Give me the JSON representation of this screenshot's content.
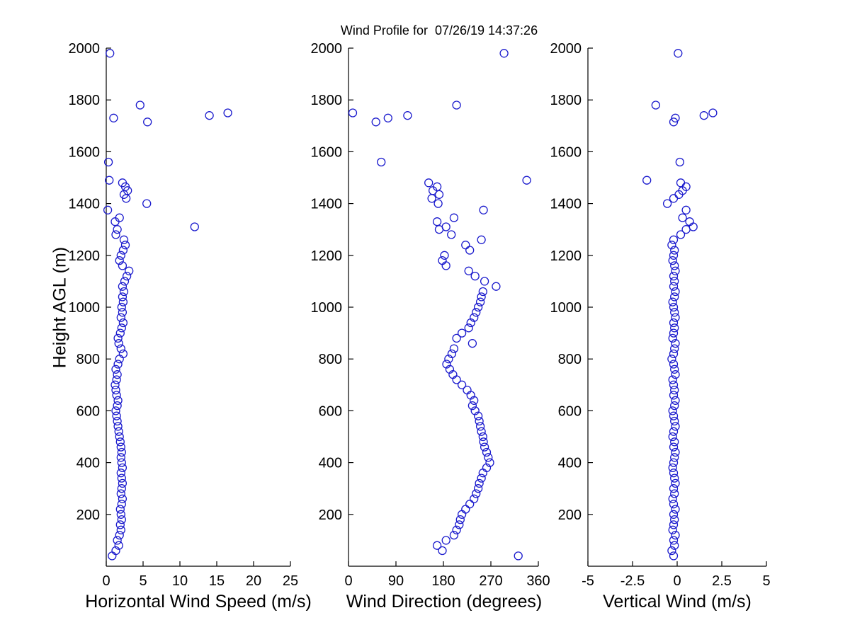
{
  "figure": {
    "title": "Wind Profile for  07/26/19 14:37:26",
    "marker_color": "#1a1acd",
    "axis_color": "#000000"
  },
  "chart_data": {
    "type": "scatter",
    "title": "Wind Profile for  07/26/19 14:37:26",
    "ylabel": "Height AGL (m)",
    "ylim": [
      0,
      2000
    ],
    "yticks": [
      200,
      400,
      600,
      800,
      1000,
      1200,
      1400,
      1600,
      1800,
      2000
    ],
    "grid": false,
    "legend": "none",
    "marker": "open-circle",
    "heights": [
      40,
      60,
      80,
      100,
      120,
      140,
      160,
      180,
      200,
      220,
      240,
      260,
      280,
      300,
      320,
      340,
      360,
      380,
      400,
      420,
      440,
      460,
      480,
      500,
      520,
      540,
      560,
      580,
      600,
      620,
      640,
      660,
      680,
      700,
      720,
      740,
      760,
      780,
      800,
      820,
      840,
      860,
      880,
      900,
      920,
      940,
      960,
      980,
      1000,
      1020,
      1040,
      1060,
      1080,
      1100,
      1120,
      1140,
      1160,
      1180,
      1200,
      1220,
      1240,
      1260,
      1280,
      1300,
      1310,
      1330,
      1345,
      1375,
      1400,
      1420,
      1435,
      1450,
      1465,
      1480,
      1490,
      1560,
      1715,
      1730,
      1740,
      1750,
      1780,
      1980
    ],
    "panels": [
      {
        "xlabel": "Horizontal Wind Speed (m/s)",
        "xlim": [
          0,
          25
        ],
        "xticks": [
          0,
          5,
          10,
          15,
          20,
          25
        ],
        "values": [
          0.8,
          1.3,
          1.7,
          1.5,
          1.8,
          2.0,
          1.9,
          2.1,
          2.0,
          1.9,
          2.1,
          2.2,
          2.0,
          2.1,
          2.2,
          2.1,
          2.0,
          2.2,
          2.1,
          2.0,
          2.1,
          2.0,
          1.9,
          1.8,
          1.7,
          1.6,
          1.5,
          1.4,
          1.3,
          1.5,
          1.6,
          1.4,
          1.3,
          1.2,
          1.4,
          1.5,
          1.3,
          1.6,
          1.8,
          2.3,
          2.0,
          1.7,
          1.6,
          1.9,
          2.1,
          2.3,
          2.0,
          2.2,
          2.1,
          2.3,
          2.2,
          2.4,
          2.2,
          2.5,
          2.8,
          3.1,
          2.2,
          1.8,
          2.0,
          2.3,
          2.6,
          2.4,
          1.3,
          1.5,
          12.0,
          1.2,
          1.8,
          0.2,
          5.5,
          2.7,
          2.4,
          2.9,
          2.6,
          2.2,
          0.4,
          0.3,
          5.6,
          1.0,
          14.0,
          16.5,
          4.6,
          0.5
        ]
      },
      {
        "xlabel": "Wind Direction (degrees)",
        "xlim": [
          0,
          360
        ],
        "xticks": [
          0,
          90,
          180,
          270,
          360
        ],
        "values": [
          322,
          178,
          168,
          185,
          200,
          205,
          210,
          212,
          215,
          222,
          230,
          238,
          242,
          246,
          248,
          252,
          255,
          262,
          268,
          265,
          262,
          258,
          256,
          255,
          252,
          250,
          248,
          246,
          240,
          235,
          238,
          232,
          225,
          215,
          205,
          198,
          192,
          186,
          190,
          196,
          200,
          235,
          205,
          215,
          228,
          232,
          238,
          242,
          246,
          250,
          252,
          255,
          280,
          258,
          240,
          228,
          185,
          178,
          182,
          230,
          222,
          252,
          195,
          172,
          185,
          168,
          200,
          256,
          170,
          158,
          172,
          160,
          168,
          152,
          338,
          62,
          52,
          75,
          112,
          8,
          205,
          295
        ]
      },
      {
        "xlabel": "Vertical Wind (m/s)",
        "xlim": [
          -5,
          5
        ],
        "xticks": [
          -5,
          -2.5,
          0,
          2.5,
          5
        ],
        "values": [
          -0.2,
          -0.3,
          -0.15,
          -0.2,
          -0.1,
          -0.25,
          -0.2,
          -0.15,
          -0.2,
          -0.1,
          -0.2,
          -0.25,
          -0.15,
          -0.2,
          -0.1,
          -0.15,
          -0.2,
          -0.25,
          -0.2,
          -0.15,
          -0.1,
          -0.2,
          -0.15,
          -0.25,
          -0.2,
          -0.1,
          -0.15,
          -0.2,
          -0.25,
          -0.15,
          -0.1,
          -0.2,
          -0.15,
          -0.2,
          -0.25,
          -0.1,
          -0.15,
          -0.2,
          -0.3,
          -0.2,
          -0.15,
          -0.1,
          -0.25,
          -0.2,
          -0.15,
          -0.2,
          -0.1,
          -0.15,
          -0.2,
          -0.25,
          -0.15,
          -0.1,
          -0.2,
          -0.15,
          -0.2,
          -0.1,
          -0.15,
          -0.25,
          -0.2,
          -0.15,
          -0.3,
          -0.2,
          0.2,
          0.5,
          0.9,
          0.7,
          0.3,
          0.5,
          -0.55,
          -0.2,
          0.1,
          0.3,
          0.5,
          0.2,
          -1.7,
          0.15,
          -0.2,
          -0.1,
          1.5,
          2.0,
          -1.2,
          0.05
        ]
      }
    ]
  }
}
